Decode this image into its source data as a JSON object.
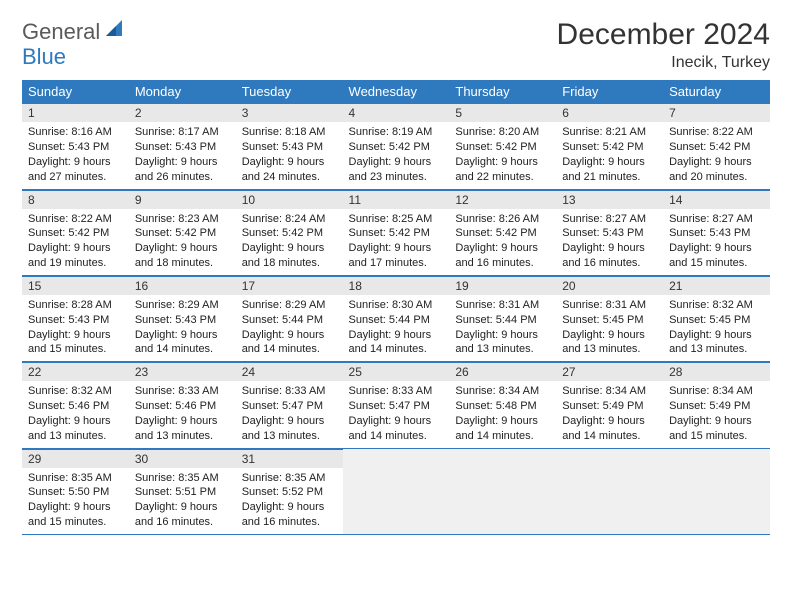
{
  "brand": {
    "part1": "General",
    "part2": "Blue"
  },
  "title": "December 2024",
  "location": "Inecik, Turkey",
  "colors": {
    "header_bg": "#2f7abf",
    "header_text": "#ffffff",
    "daynum_bg": "#e8e8e8",
    "border": "#2f7abf",
    "logo_gray": "#5a5a5a",
    "logo_blue": "#2f7abf"
  },
  "weekdays": [
    "Sunday",
    "Monday",
    "Tuesday",
    "Wednesday",
    "Thursday",
    "Friday",
    "Saturday"
  ],
  "weeks": [
    [
      {
        "n": "1",
        "sr": "Sunrise: 8:16 AM",
        "ss": "Sunset: 5:43 PM",
        "d1": "Daylight: 9 hours",
        "d2": "and 27 minutes."
      },
      {
        "n": "2",
        "sr": "Sunrise: 8:17 AM",
        "ss": "Sunset: 5:43 PM",
        "d1": "Daylight: 9 hours",
        "d2": "and 26 minutes."
      },
      {
        "n": "3",
        "sr": "Sunrise: 8:18 AM",
        "ss": "Sunset: 5:43 PM",
        "d1": "Daylight: 9 hours",
        "d2": "and 24 minutes."
      },
      {
        "n": "4",
        "sr": "Sunrise: 8:19 AM",
        "ss": "Sunset: 5:42 PM",
        "d1": "Daylight: 9 hours",
        "d2": "and 23 minutes."
      },
      {
        "n": "5",
        "sr": "Sunrise: 8:20 AM",
        "ss": "Sunset: 5:42 PM",
        "d1": "Daylight: 9 hours",
        "d2": "and 22 minutes."
      },
      {
        "n": "6",
        "sr": "Sunrise: 8:21 AM",
        "ss": "Sunset: 5:42 PM",
        "d1": "Daylight: 9 hours",
        "d2": "and 21 minutes."
      },
      {
        "n": "7",
        "sr": "Sunrise: 8:22 AM",
        "ss": "Sunset: 5:42 PM",
        "d1": "Daylight: 9 hours",
        "d2": "and 20 minutes."
      }
    ],
    [
      {
        "n": "8",
        "sr": "Sunrise: 8:22 AM",
        "ss": "Sunset: 5:42 PM",
        "d1": "Daylight: 9 hours",
        "d2": "and 19 minutes."
      },
      {
        "n": "9",
        "sr": "Sunrise: 8:23 AM",
        "ss": "Sunset: 5:42 PM",
        "d1": "Daylight: 9 hours",
        "d2": "and 18 minutes."
      },
      {
        "n": "10",
        "sr": "Sunrise: 8:24 AM",
        "ss": "Sunset: 5:42 PM",
        "d1": "Daylight: 9 hours",
        "d2": "and 18 minutes."
      },
      {
        "n": "11",
        "sr": "Sunrise: 8:25 AM",
        "ss": "Sunset: 5:42 PM",
        "d1": "Daylight: 9 hours",
        "d2": "and 17 minutes."
      },
      {
        "n": "12",
        "sr": "Sunrise: 8:26 AM",
        "ss": "Sunset: 5:42 PM",
        "d1": "Daylight: 9 hours",
        "d2": "and 16 minutes."
      },
      {
        "n": "13",
        "sr": "Sunrise: 8:27 AM",
        "ss": "Sunset: 5:43 PM",
        "d1": "Daylight: 9 hours",
        "d2": "and 16 minutes."
      },
      {
        "n": "14",
        "sr": "Sunrise: 8:27 AM",
        "ss": "Sunset: 5:43 PM",
        "d1": "Daylight: 9 hours",
        "d2": "and 15 minutes."
      }
    ],
    [
      {
        "n": "15",
        "sr": "Sunrise: 8:28 AM",
        "ss": "Sunset: 5:43 PM",
        "d1": "Daylight: 9 hours",
        "d2": "and 15 minutes."
      },
      {
        "n": "16",
        "sr": "Sunrise: 8:29 AM",
        "ss": "Sunset: 5:43 PM",
        "d1": "Daylight: 9 hours",
        "d2": "and 14 minutes."
      },
      {
        "n": "17",
        "sr": "Sunrise: 8:29 AM",
        "ss": "Sunset: 5:44 PM",
        "d1": "Daylight: 9 hours",
        "d2": "and 14 minutes."
      },
      {
        "n": "18",
        "sr": "Sunrise: 8:30 AM",
        "ss": "Sunset: 5:44 PM",
        "d1": "Daylight: 9 hours",
        "d2": "and 14 minutes."
      },
      {
        "n": "19",
        "sr": "Sunrise: 8:31 AM",
        "ss": "Sunset: 5:44 PM",
        "d1": "Daylight: 9 hours",
        "d2": "and 13 minutes."
      },
      {
        "n": "20",
        "sr": "Sunrise: 8:31 AM",
        "ss": "Sunset: 5:45 PM",
        "d1": "Daylight: 9 hours",
        "d2": "and 13 minutes."
      },
      {
        "n": "21",
        "sr": "Sunrise: 8:32 AM",
        "ss": "Sunset: 5:45 PM",
        "d1": "Daylight: 9 hours",
        "d2": "and 13 minutes."
      }
    ],
    [
      {
        "n": "22",
        "sr": "Sunrise: 8:32 AM",
        "ss": "Sunset: 5:46 PM",
        "d1": "Daylight: 9 hours",
        "d2": "and 13 minutes."
      },
      {
        "n": "23",
        "sr": "Sunrise: 8:33 AM",
        "ss": "Sunset: 5:46 PM",
        "d1": "Daylight: 9 hours",
        "d2": "and 13 minutes."
      },
      {
        "n": "24",
        "sr": "Sunrise: 8:33 AM",
        "ss": "Sunset: 5:47 PM",
        "d1": "Daylight: 9 hours",
        "d2": "and 13 minutes."
      },
      {
        "n": "25",
        "sr": "Sunrise: 8:33 AM",
        "ss": "Sunset: 5:47 PM",
        "d1": "Daylight: 9 hours",
        "d2": "and 14 minutes."
      },
      {
        "n": "26",
        "sr": "Sunrise: 8:34 AM",
        "ss": "Sunset: 5:48 PM",
        "d1": "Daylight: 9 hours",
        "d2": "and 14 minutes."
      },
      {
        "n": "27",
        "sr": "Sunrise: 8:34 AM",
        "ss": "Sunset: 5:49 PM",
        "d1": "Daylight: 9 hours",
        "d2": "and 14 minutes."
      },
      {
        "n": "28",
        "sr": "Sunrise: 8:34 AM",
        "ss": "Sunset: 5:49 PM",
        "d1": "Daylight: 9 hours",
        "d2": "and 15 minutes."
      }
    ],
    [
      {
        "n": "29",
        "sr": "Sunrise: 8:35 AM",
        "ss": "Sunset: 5:50 PM",
        "d1": "Daylight: 9 hours",
        "d2": "and 15 minutes."
      },
      {
        "n": "30",
        "sr": "Sunrise: 8:35 AM",
        "ss": "Sunset: 5:51 PM",
        "d1": "Daylight: 9 hours",
        "d2": "and 16 minutes."
      },
      {
        "n": "31",
        "sr": "Sunrise: 8:35 AM",
        "ss": "Sunset: 5:52 PM",
        "d1": "Daylight: 9 hours",
        "d2": "and 16 minutes."
      },
      null,
      null,
      null,
      null
    ]
  ]
}
